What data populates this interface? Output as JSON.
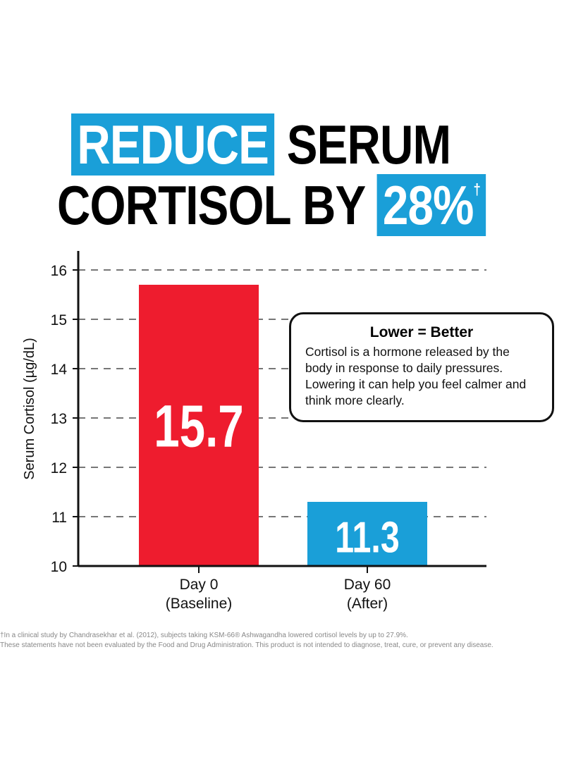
{
  "headline": {
    "highlight1": "REDUCE",
    "text1": "SERUM",
    "text2": "CORTISOL BY",
    "highlight2": "28%",
    "dagger": "†"
  },
  "colors": {
    "blue": "#1a9fd8",
    "red": "#ee1c2e"
  },
  "callout": {
    "title": "Lower = Better",
    "body": "Cortisol is a hormone released by the body in response to daily pressures. Lowering it can help you feel calmer and think more clearly."
  },
  "chart_data": {
    "type": "bar",
    "categories": [
      "Day 0\n(Baseline)",
      "Day 60\n(After)"
    ],
    "category_lines": [
      [
        "Day 0",
        "(Baseline)"
      ],
      [
        "Day 60",
        "(After)"
      ]
    ],
    "values": [
      15.7,
      11.3
    ],
    "value_labels": [
      "15.7",
      "11.3"
    ],
    "bar_colors": [
      "#ee1c2e",
      "#1a9fd8"
    ],
    "ylabel": "Serum Cortisol (µg/dL)",
    "ylim": [
      10,
      16
    ],
    "yticks": [
      "10",
      "11",
      "12",
      "13",
      "14",
      "15",
      "16"
    ],
    "grid": "dashed horizontal"
  },
  "footnotes": [
    "†In a clinical study by Chandrasekhar et al. (2012), subjects taking KSM-66® Ashwagandha lowered cortisol levels by up to 27.9%.",
    "These statements have not been evaluated by the Food and Drug Administration. This product is not intended to diagnose, treat, cure, or prevent any disease."
  ]
}
